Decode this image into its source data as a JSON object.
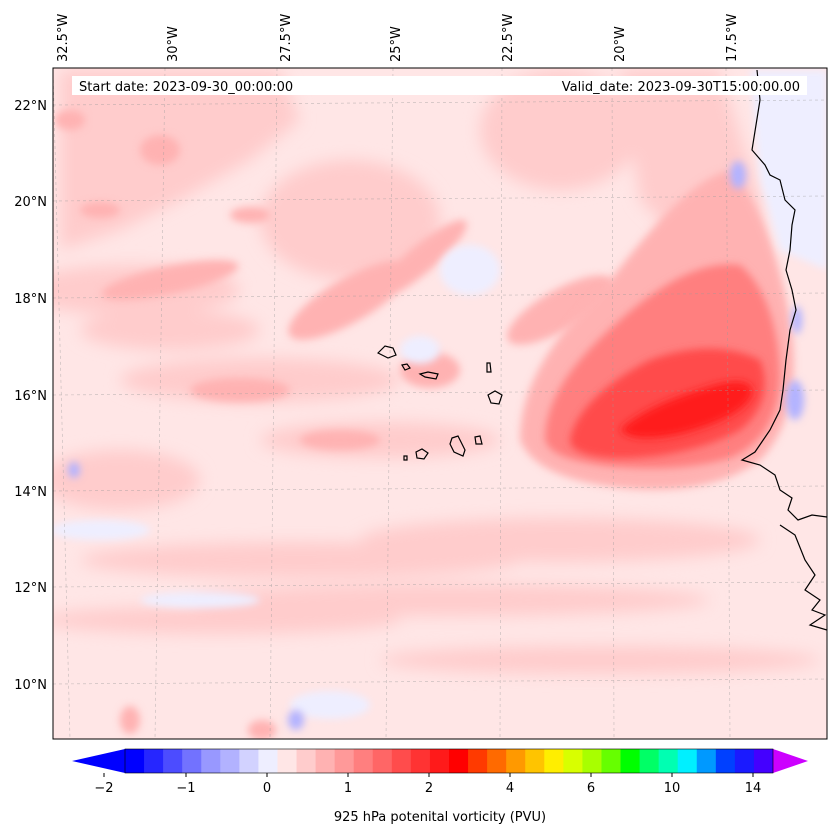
{
  "map": {
    "top_labels": [
      "32.5°W",
      "30°W",
      "27.5°W",
      "25°W",
      "22.5°W",
      "20°W",
      "17.5°W"
    ],
    "left_labels": [
      "22°N",
      "20°N",
      "18°N",
      "16°N",
      "14°N",
      "12°N",
      "10°N"
    ],
    "start_date": "Start date: 2023-09-30_00:00:00",
    "valid_date": "Valid_date: 2023-09-30T15:00:00.00"
  },
  "colorbar": {
    "tick_labels": [
      "−2",
      "−1",
      "0",
      "1",
      "2",
      "4",
      "6",
      "10",
      "14"
    ],
    "title": "925 hPa potenital vorticity (PVU)",
    "colors": [
      "#0000ff",
      "#2626ff",
      "#4c4cff",
      "#7272ff",
      "#9898ff",
      "#b2b2ff",
      "#d2d2ff",
      "#eeeeff",
      "#ffe6e6",
      "#ffcccc",
      "#ffb2b2",
      "#ff9999",
      "#ff7f7f",
      "#ff6666",
      "#ff4c4c",
      "#ff3333",
      "#ff1a1a",
      "#ff0000",
      "#ff3a00",
      "#ff6a00",
      "#ff9900",
      "#ffc400",
      "#ffee00",
      "#d8ff00",
      "#a8ff00",
      "#66ff00",
      "#00ff00",
      "#00ff66",
      "#00ffb2",
      "#00f0ff",
      "#0099ff",
      "#0040ff",
      "#1a1aff",
      "#4400ff"
    ],
    "extend_min_color": "#0000ff",
    "extend_max_color": "#cc00ff"
  },
  "colors": {
    "background": "#ffe6e6",
    "light_pink": "#ffcccc",
    "pink": "#ffb2b2",
    "mid_red": "#ff7f7f",
    "red": "#ff4c4c",
    "strong_red": "#ff1a1a",
    "light_blue": "#eeeeff",
    "blue": "#b2b2ff",
    "coast": "#000000"
  }
}
